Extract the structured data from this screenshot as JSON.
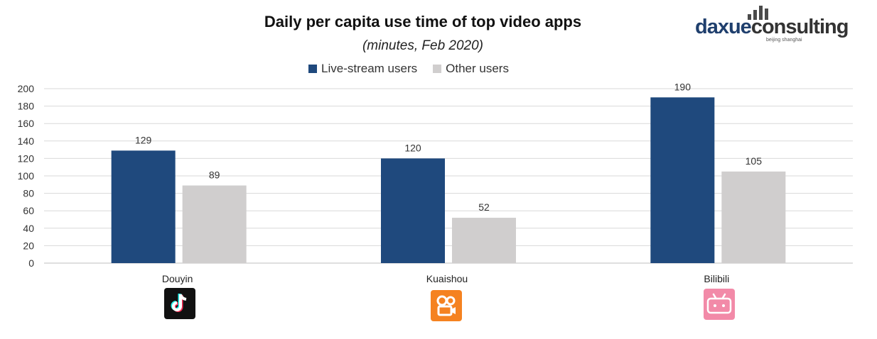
{
  "chart_data": {
    "type": "bar",
    "title": "Daily per capita use time of top video apps",
    "subtitle": "(minutes, Feb 2020)",
    "categories": [
      "Douyin",
      "Kuaishou",
      "Bilibili"
    ],
    "series": [
      {
        "name": "Live-stream users",
        "values": [
          129,
          120,
          190
        ],
        "color": "#1f497d"
      },
      {
        "name": "Other users",
        "values": [
          89,
          52,
          105
        ],
        "color": "#d0cece"
      }
    ],
    "yticks": [
      0,
      20,
      40,
      60,
      80,
      100,
      120,
      140,
      160,
      180,
      200
    ],
    "ylim": [
      0,
      200
    ],
    "grid": true,
    "legend_position": "top-center",
    "xlabel": "",
    "ylabel": ""
  },
  "logo": {
    "word_part1": "daxue",
    "word_part2": "consulting",
    "tagline": "beijing shanghai"
  },
  "icons": [
    "douyin-icon",
    "kuaishou-icon",
    "bilibili-icon"
  ]
}
